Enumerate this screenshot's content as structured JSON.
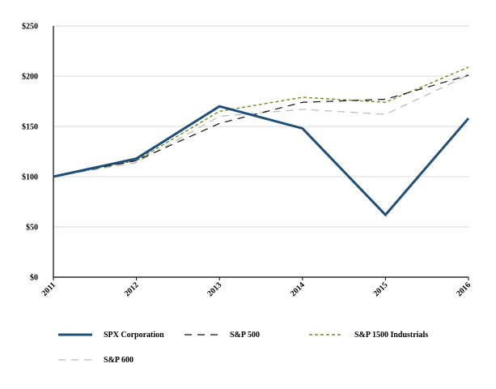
{
  "chart_data": {
    "type": "line",
    "title": "",
    "xlabel": "",
    "ylabel": "",
    "categories": [
      "2011",
      "2012",
      "2013",
      "2014",
      "2015",
      "2016"
    ],
    "ylim": [
      0,
      250
    ],
    "yticks": [
      0,
      50,
      100,
      150,
      200,
      250
    ],
    "ytick_labels": [
      "$0",
      "$50",
      "$100",
      "$150",
      "$200",
      "$250"
    ],
    "grid": "horizontal",
    "legend_position": "bottom",
    "series": [
      {
        "name": "SPX Corporation",
        "values": [
          100,
          118,
          170,
          148,
          62,
          158
        ],
        "color": "#1f4e79",
        "style": "solid"
      },
      {
        "name": "S&P 500",
        "values": [
          100,
          116,
          153,
          174,
          177,
          201
        ],
        "color": "#111111",
        "style": "dashed"
      },
      {
        "name": "S&P 1500 Industrials",
        "values": [
          100,
          116,
          165,
          179,
          174,
          209
        ],
        "color": "#6b8e23",
        "style": "short-dashed"
      },
      {
        "name": "S&P 600",
        "values": [
          100,
          114,
          160,
          167,
          162,
          201
        ],
        "color": "#b8b8b8",
        "style": "dashed"
      }
    ]
  }
}
